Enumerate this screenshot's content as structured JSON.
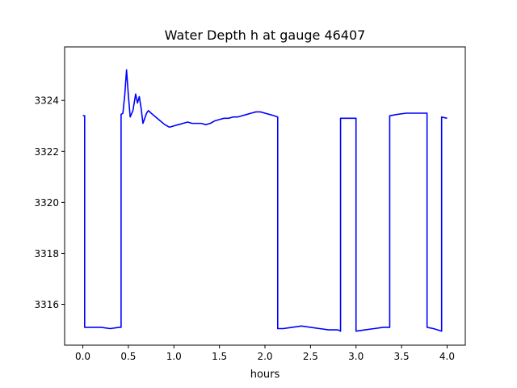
{
  "chart_data": {
    "type": "line",
    "title": "Water Depth h at gauge 46407",
    "xlabel": "hours",
    "ylabel": "",
    "xlim": [
      -0.2,
      4.2
    ],
    "ylim": [
      3314.4,
      3326.1
    ],
    "xticks": [
      0.0,
      0.5,
      1.0,
      1.5,
      2.0,
      2.5,
      3.0,
      3.5,
      4.0
    ],
    "xtick_labels": [
      "0.0",
      "0.5",
      "1.0",
      "1.5",
      "2.0",
      "2.5",
      "3.0",
      "3.5",
      "4.0"
    ],
    "yticks": [
      3316,
      3318,
      3320,
      3322,
      3324
    ],
    "ytick_labels": [
      "3316",
      "3318",
      "3320",
      "3322",
      "3324"
    ],
    "grid": false,
    "line_color": "#0000ff",
    "series": [
      {
        "x": [
          0.0,
          0.02,
          0.02,
          0.1,
          0.2,
          0.3,
          0.4,
          0.42,
          0.42,
          0.44,
          0.46,
          0.48,
          0.5,
          0.52,
          0.55,
          0.58,
          0.6,
          0.62,
          0.64,
          0.66,
          0.68,
          0.7,
          0.72,
          0.75,
          0.8,
          0.85,
          0.9,
          0.95,
          1.0,
          1.05,
          1.1,
          1.15,
          1.2,
          1.25,
          1.3,
          1.35,
          1.4,
          1.45,
          1.5,
          1.55,
          1.6,
          1.65,
          1.7,
          1.75,
          1.8,
          1.85,
          1.9,
          1.95,
          2.0,
          2.05,
          2.1,
          2.14,
          2.14,
          2.2,
          2.3,
          2.4,
          2.5,
          2.6,
          2.7,
          2.8,
          2.83,
          2.83,
          2.9,
          3.0,
          3.0,
          3.1,
          3.2,
          3.3,
          3.37,
          3.37,
          3.45,
          3.55,
          3.65,
          3.75,
          3.78,
          3.78,
          3.85,
          3.94,
          3.94,
          4.0
        ],
        "y": [
          3323.4,
          3323.4,
          3315.1,
          3315.1,
          3315.1,
          3315.05,
          3315.1,
          3315.1,
          3323.45,
          3323.5,
          3324.2,
          3325.2,
          3324.2,
          3323.35,
          3323.6,
          3324.25,
          3323.9,
          3324.15,
          3323.7,
          3323.1,
          3323.3,
          3323.5,
          3323.6,
          3323.5,
          3323.35,
          3323.2,
          3323.05,
          3322.95,
          3323.0,
          3323.05,
          3323.1,
          3323.15,
          3323.1,
          3323.1,
          3323.1,
          3323.05,
          3323.1,
          3323.2,
          3323.25,
          3323.3,
          3323.3,
          3323.35,
          3323.35,
          3323.4,
          3323.45,
          3323.5,
          3323.55,
          3323.55,
          3323.5,
          3323.45,
          3323.4,
          3323.35,
          3315.05,
          3315.05,
          3315.1,
          3315.15,
          3315.1,
          3315.05,
          3315.0,
          3315.0,
          3314.95,
          3323.3,
          3323.3,
          3323.3,
          3314.95,
          3315.0,
          3315.05,
          3315.1,
          3315.1,
          3323.4,
          3323.45,
          3323.5,
          3323.5,
          3323.5,
          3323.5,
          3315.1,
          3315.05,
          3314.95,
          3323.35,
          3323.3
        ]
      }
    ]
  }
}
